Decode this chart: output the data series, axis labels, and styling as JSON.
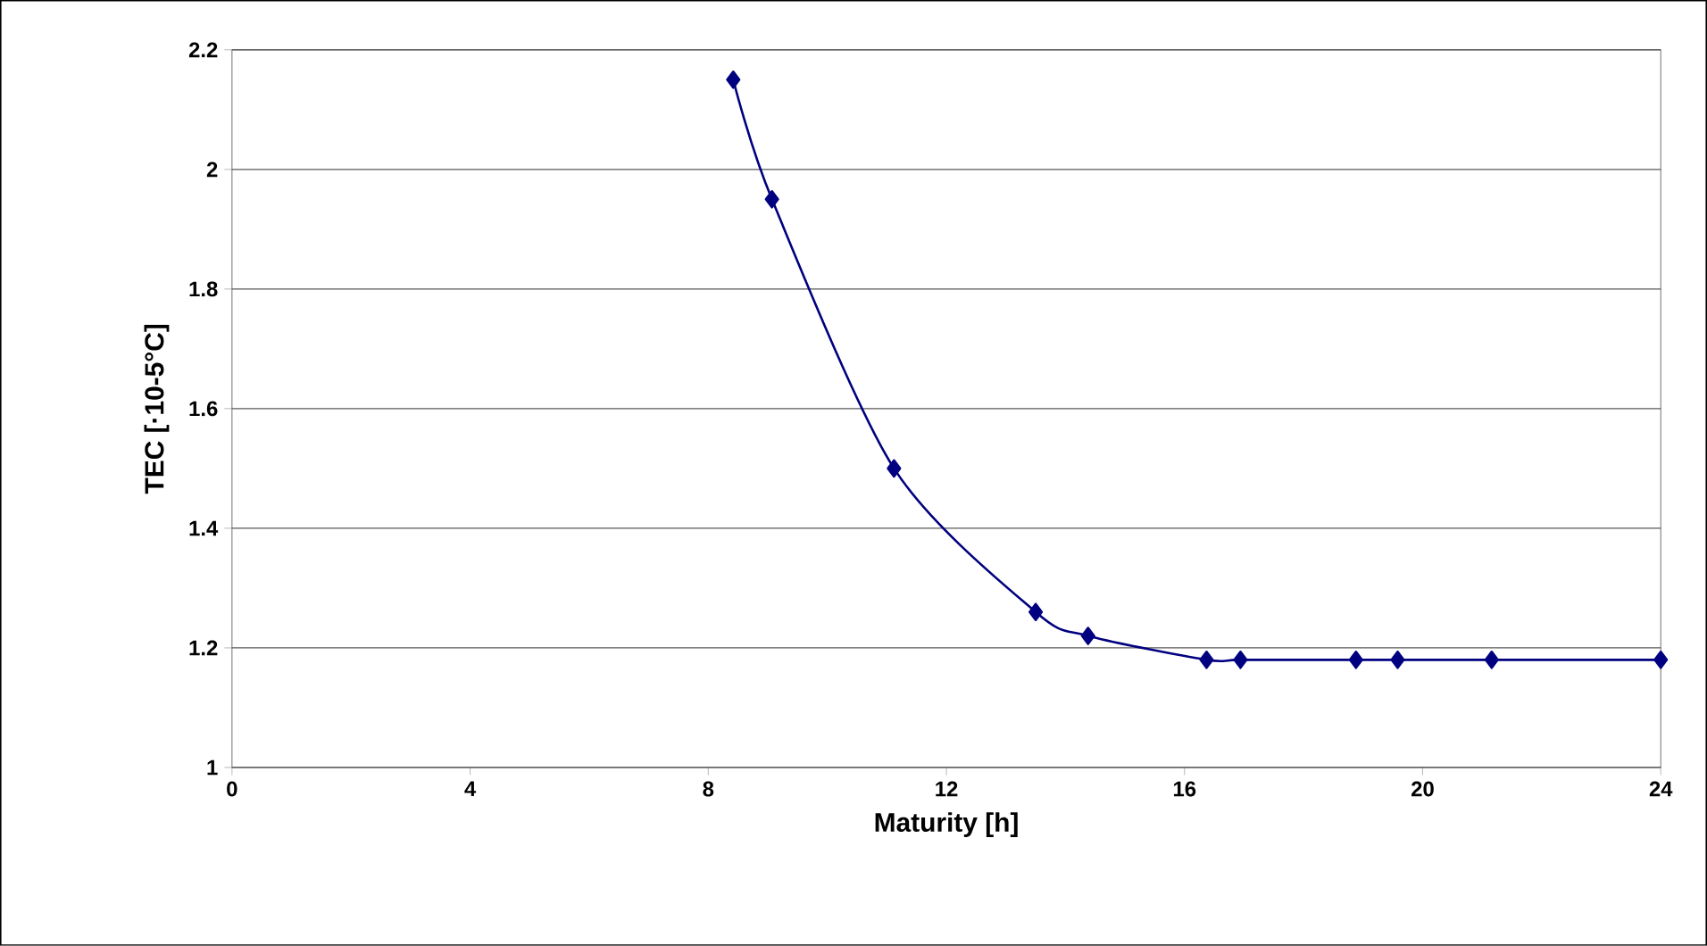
{
  "chart_data": {
    "type": "line",
    "xlabel": "Maturity [h]",
    "ylabel": "TEC [·10-5°C]",
    "x": [
      8.42,
      9.07,
      11.12,
      13.5,
      14.38,
      16.37,
      16.94,
      18.88,
      19.58,
      21.16,
      24
    ],
    "series": [
      {
        "color": "#000080",
        "values": [
          2.15,
          1.95,
          1.5,
          1.26,
          1.22,
          1.18,
          1.18,
          1.18,
          1.18,
          1.18,
          1.18
        ]
      }
    ],
    "xlim": [
      0,
      24
    ],
    "xticks": [
      0,
      4,
      8,
      12,
      16,
      20,
      24
    ],
    "ylim": [
      1,
      2.2
    ],
    "yticks": [
      1,
      1.2,
      1.4,
      1.6,
      1.8,
      2,
      2.2
    ],
    "grid": "y",
    "marker": "diamond",
    "line_style": "solid"
  }
}
